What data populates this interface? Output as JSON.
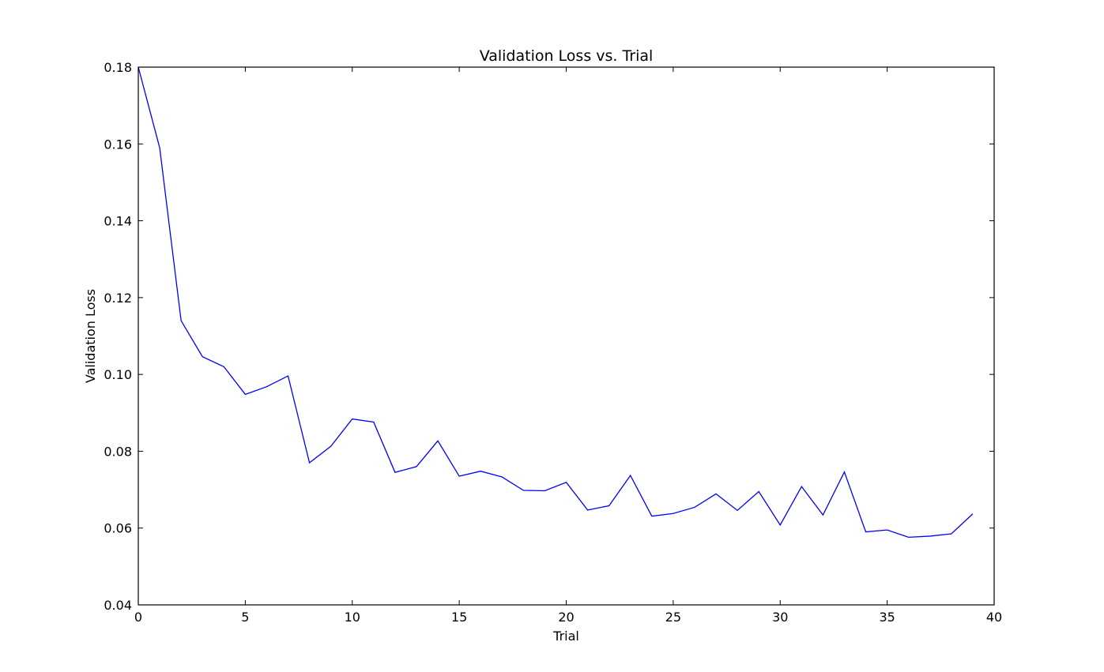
{
  "chart_data": {
    "type": "line",
    "title": "Validation Loss vs. Trial",
    "xlabel": "Trial",
    "ylabel": "Validation Loss",
    "xlim": [
      0,
      40
    ],
    "ylim": [
      0.04,
      0.18
    ],
    "xticks": [
      0,
      5,
      10,
      15,
      20,
      25,
      30,
      35,
      40
    ],
    "yticks": [
      0.04,
      0.06,
      0.08,
      0.1,
      0.12,
      0.14,
      0.16,
      0.18
    ],
    "xtick_labels": [
      "0",
      "5",
      "10",
      "15",
      "20",
      "25",
      "30",
      "35",
      "40"
    ],
    "ytick_labels": [
      "0.04",
      "0.06",
      "0.08",
      "0.10",
      "0.12",
      "0.14",
      "0.16",
      "0.18"
    ],
    "grid": false,
    "series": [
      {
        "color": "#0000ff",
        "x": [
          0,
          1,
          2,
          3,
          4,
          5,
          6,
          7,
          8,
          9,
          10,
          11,
          12,
          13,
          14,
          15,
          16,
          17,
          18,
          19,
          20,
          21,
          22,
          23,
          24,
          25,
          26,
          27,
          28,
          29,
          30,
          31,
          32,
          33,
          34,
          35,
          36,
          37,
          38,
          39
        ],
        "y": [
          0.18,
          0.159,
          0.114,
          0.1046,
          0.102,
          0.0948,
          0.0968,
          0.0996,
          0.077,
          0.0813,
          0.0884,
          0.0876,
          0.0745,
          0.076,
          0.0827,
          0.0735,
          0.0748,
          0.0733,
          0.0698,
          0.0697,
          0.0719,
          0.0647,
          0.0658,
          0.0737,
          0.0631,
          0.0638,
          0.0654,
          0.0689,
          0.0646,
          0.0695,
          0.0608,
          0.0708,
          0.0634,
          0.0746,
          0.059,
          0.0595,
          0.0576,
          0.0579,
          0.0585,
          0.0637
        ]
      }
    ]
  }
}
